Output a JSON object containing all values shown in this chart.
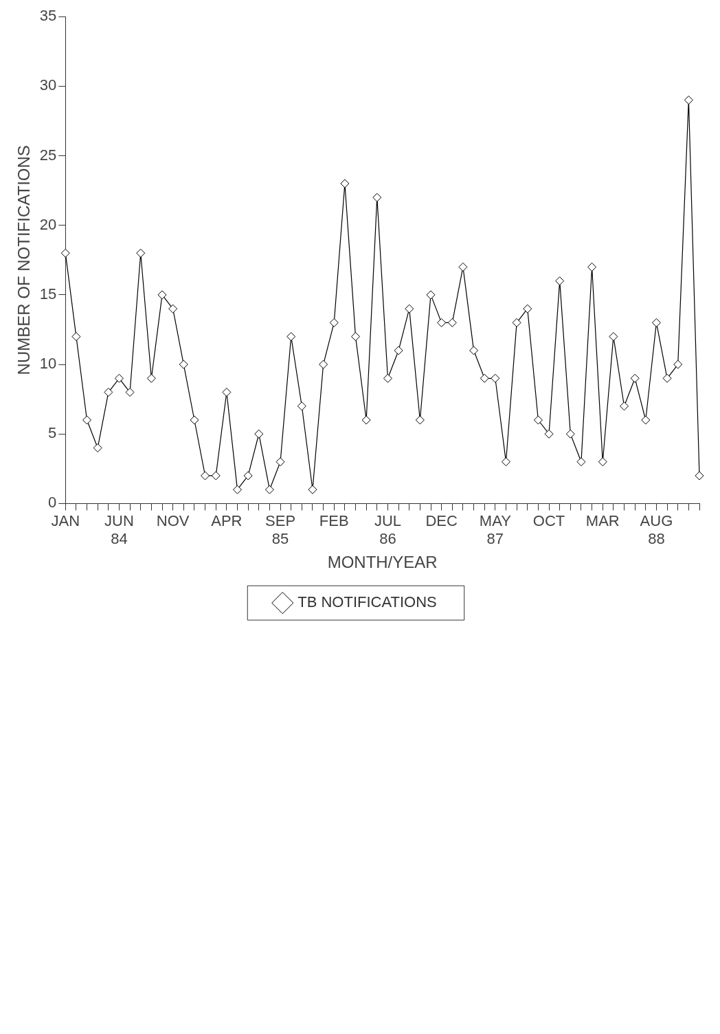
{
  "chart_data": {
    "type": "line",
    "ylabel": "NUMBER OF NOTIFICATIONS",
    "xlabel": "MONTH/YEAR",
    "categories": [
      "JAN",
      null,
      null,
      null,
      null,
      "JUN\n84",
      null,
      null,
      null,
      null,
      "NOV",
      null,
      null,
      null,
      null,
      "APR",
      null,
      null,
      null,
      null,
      "SEP\n85",
      null,
      null,
      null,
      null,
      "FEB",
      null,
      null,
      null,
      null,
      "JUL\n86",
      null,
      null,
      null,
      null,
      "DEC",
      null,
      null,
      null,
      null,
      "MAY\n87",
      null,
      null,
      null,
      null,
      "OCT",
      null,
      null,
      null,
      null,
      "MAR",
      null,
      null,
      null,
      null,
      "AUG\n88",
      null,
      null,
      null,
      null
    ],
    "series": [
      {
        "name": "TB NOTIFICATIONS",
        "color": "#000000",
        "values": [
          18,
          12,
          6,
          4,
          8,
          9,
          8,
          18,
          9,
          15,
          14,
          10,
          6,
          2,
          2,
          8,
          1,
          2,
          5,
          1,
          3,
          12,
          7,
          1,
          10,
          13,
          23,
          12,
          6,
          22,
          9,
          11,
          14,
          6,
          15,
          13,
          13,
          17,
          11,
          9,
          9,
          3,
          13,
          14,
          6,
          5,
          16,
          5,
          3,
          17,
          3,
          12,
          7,
          9,
          6,
          13,
          9,
          10,
          29,
          2
        ]
      }
    ],
    "ylim": [
      0,
      35
    ],
    "yticks": [
      0,
      5,
      10,
      15,
      20,
      25,
      30,
      35
    ],
    "grid": false,
    "legend": "bottom",
    "marker": "diamond",
    "line_style": "solid"
  }
}
